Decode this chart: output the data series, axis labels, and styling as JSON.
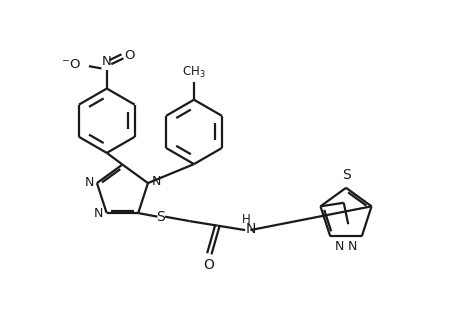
{
  "bg_color": "#ffffff",
  "line_color": "#1a1a1a",
  "line_width": 1.6,
  "figsize": [
    4.64,
    3.13
  ],
  "dpi": 100,
  "xlim": [
    0,
    10
  ],
  "ylim": [
    0,
    7
  ]
}
